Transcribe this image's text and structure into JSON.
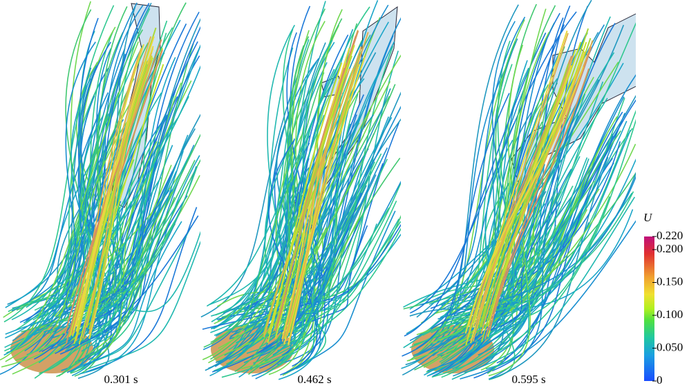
{
  "panels": [
    {
      "label": "0.301 s"
    },
    {
      "label": "0.462 s"
    },
    {
      "label": "0.595 s"
    }
  ],
  "colorbar": {
    "label": "U",
    "lim": [
      0,
      0.22
    ],
    "ticks": [
      0,
      {
        "value": 0.05,
        "label": "0.050"
      },
      {
        "value": 0.1,
        "label": "0.100"
      },
      {
        "value": 0.15,
        "label": "0.150"
      },
      {
        "value": 0.2,
        "label": "0.200"
      },
      {
        "value": 0.22,
        "label": "0.220"
      }
    ]
  }
}
